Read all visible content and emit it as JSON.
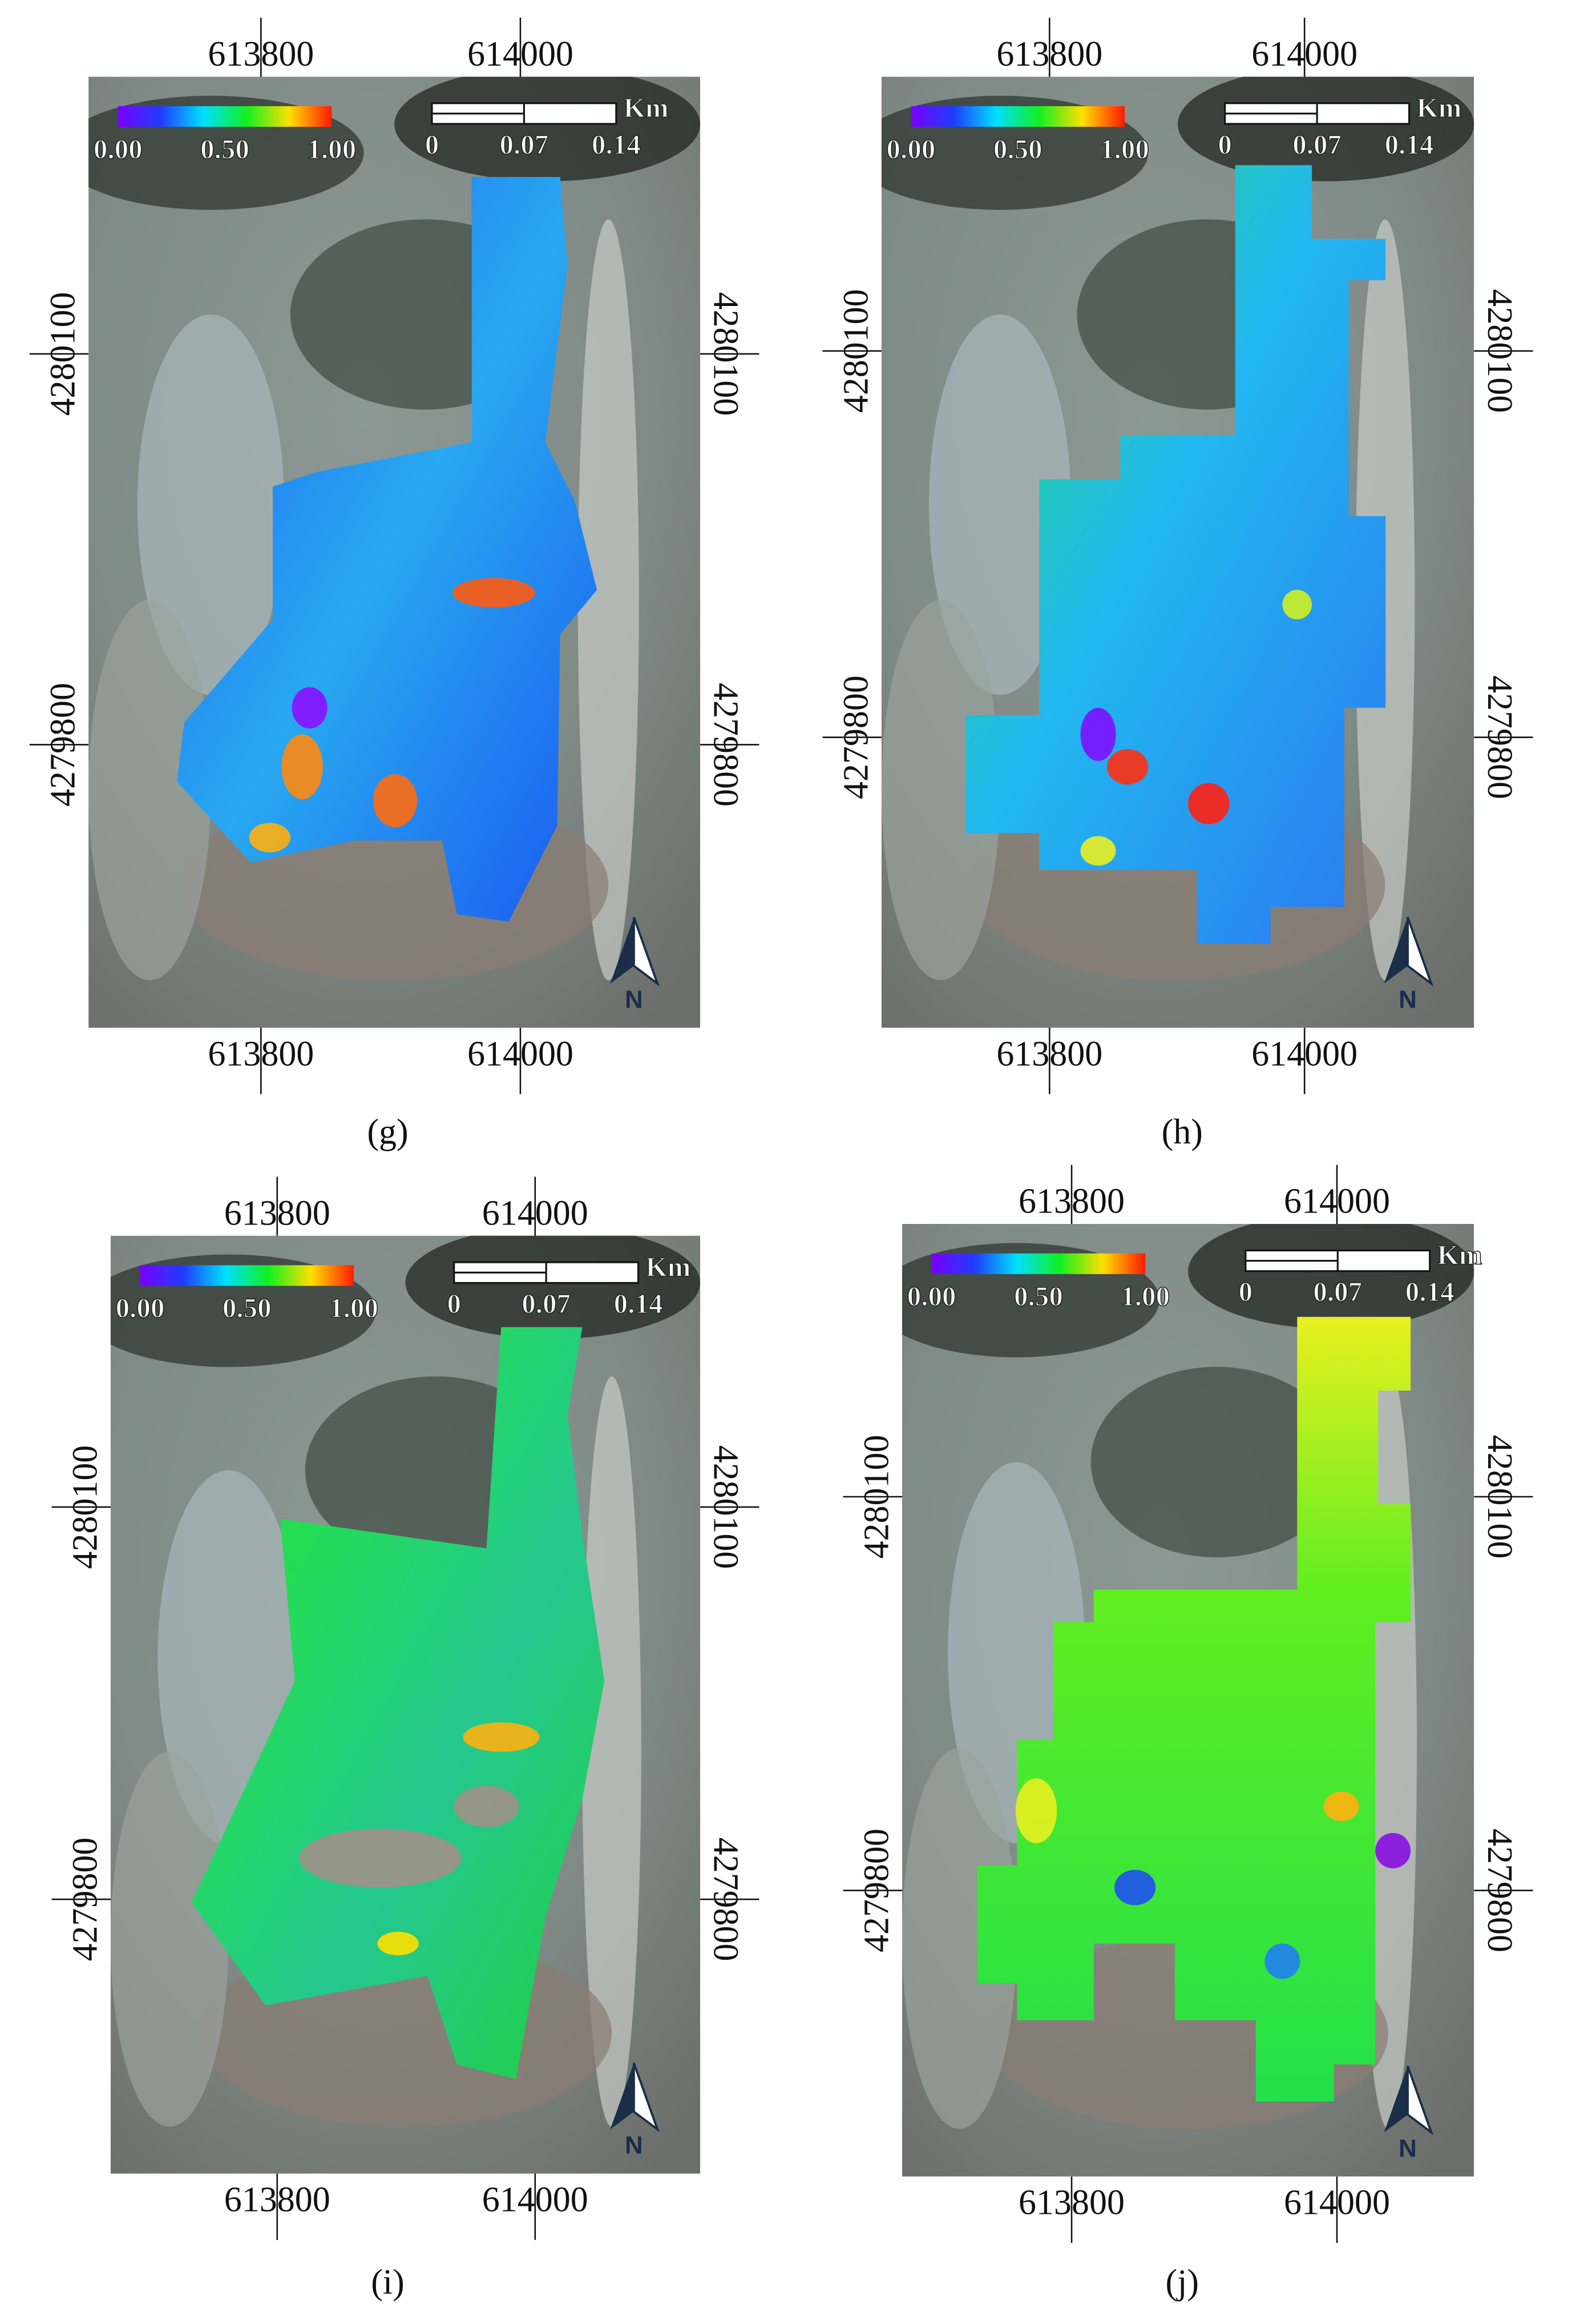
{
  "panels": [
    {
      "label": "(g)",
      "x_labels": [
        "613800",
        "614000"
      ],
      "y_labels": [
        "4280100",
        "4279800"
      ],
      "colorbar_ticks": [
        "0.00",
        "0.50",
        "1.00"
      ],
      "scale_labels": [
        "0",
        "0.07",
        "0.14"
      ],
      "scale_unit": "Km",
      "north": "N"
    },
    {
      "label": "(h)",
      "x_labels": [
        "613800",
        "614000"
      ],
      "y_labels": [
        "4280100",
        "4279800"
      ],
      "colorbar_ticks": [
        "0.00",
        "0.50",
        "1.00"
      ],
      "scale_labels": [
        "0",
        "0.07",
        "0.14"
      ],
      "scale_unit": "Km",
      "north": "N"
    },
    {
      "label": "(i)",
      "x_labels": [
        "613800",
        "614000"
      ],
      "y_labels": [
        "4280100",
        "4279800"
      ],
      "colorbar_ticks": [
        "0.00",
        "0.50",
        "1.00"
      ],
      "scale_labels": [
        "0",
        "0.07",
        "0.14"
      ],
      "scale_unit": "Km",
      "north": "N"
    },
    {
      "label": "(j)",
      "x_labels": [
        "613800",
        "614000"
      ],
      "y_labels": [
        "4280100",
        "4279800"
      ],
      "colorbar_ticks": [
        "0.00",
        "0.50",
        "1.00"
      ],
      "scale_labels": [
        "0",
        "0.07",
        "0.14"
      ],
      "scale_unit": "Km",
      "north": "N"
    }
  ]
}
